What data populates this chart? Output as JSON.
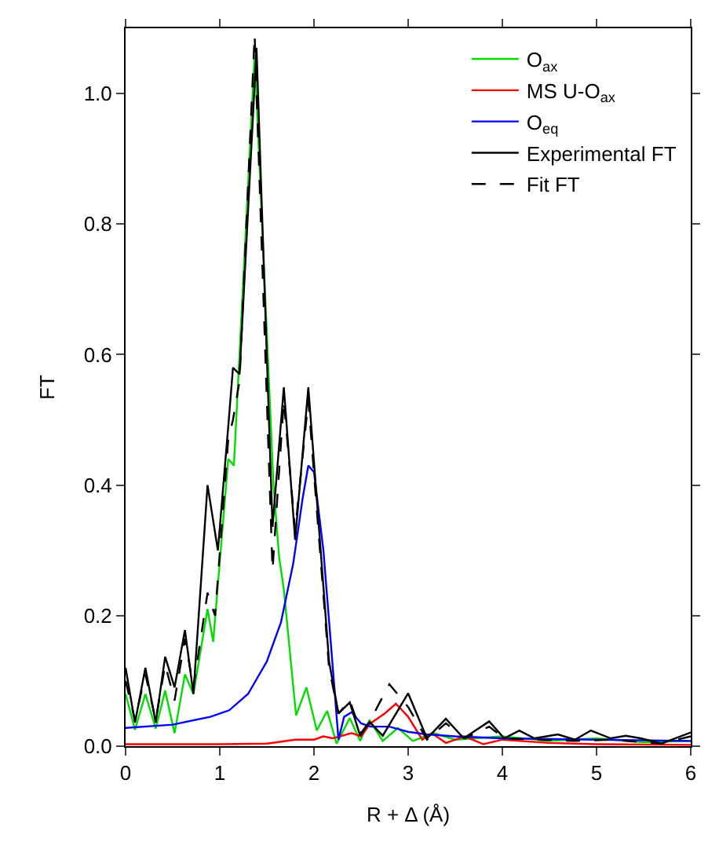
{
  "chart_data": {
    "type": "line",
    "xlabel": "R + Δ (Å)",
    "ylabel": "FT",
    "xlim": [
      0,
      6
    ],
    "xticks": [
      0,
      1,
      2,
      3,
      4,
      5,
      6
    ],
    "ylim": [
      0,
      1.1
    ],
    "yticks": [
      {
        "value": 0,
        "label": "0.0"
      },
      {
        "value": 0.2,
        "label": "0.2"
      },
      {
        "value": 0.4,
        "label": "0.4"
      },
      {
        "value": 0.6,
        "label": "0.6"
      },
      {
        "value": 0.8,
        "label": "0.8"
      },
      {
        "value": 1.0,
        "label": "1.0"
      }
    ],
    "legend": "top right",
    "marker": "none",
    "series": [
      {
        "name": "O$_{ax}$",
        "color": "#00dd00",
        "line_style": "solid",
        "x": [
          0,
          0.1,
          0.21,
          0.32,
          0.42,
          0.52,
          0.63,
          0.72,
          0.87,
          0.93,
          1.09,
          1.15,
          1.37,
          1.57,
          1.63,
          1.68,
          1.81,
          1.92,
          2.03,
          2.14,
          2.24,
          2.38,
          2.49,
          2.59,
          2.73,
          2.89,
          3.05,
          3.27,
          3.5,
          4,
          4.5,
          5,
          5.5,
          6
        ],
        "values": [
          0.08,
          0.025,
          0.08,
          0.027,
          0.085,
          0.02,
          0.11,
          0.08,
          0.21,
          0.16,
          0.44,
          0.43,
          1.06,
          0.4,
          0.29,
          0.24,
          0.047,
          0.09,
          0.024,
          0.054,
          0.004,
          0.043,
          0.008,
          0.04,
          0.008,
          0.028,
          0.008,
          0.02,
          0.01,
          0.015,
          0.008,
          0.012,
          0.006,
          0.008
        ]
      },
      {
        "name": "MS U-O$_{ax}$",
        "color": "#ff0000",
        "line_style": "solid",
        "x": [
          0,
          0.5,
          1,
          1.5,
          1.8,
          2.0,
          2.1,
          2.2,
          2.4,
          2.5,
          2.6,
          2.75,
          2.87,
          3.0,
          3.15,
          3.25,
          3.4,
          3.6,
          3.8,
          4.0,
          4.5,
          5,
          6
        ],
        "values": [
          0.003,
          0.003,
          0.003,
          0.004,
          0.01,
          0.01,
          0.015,
          0.012,
          0.02,
          0.015,
          0.035,
          0.05,
          0.065,
          0.045,
          0.01,
          0.02,
          0.005,
          0.015,
          0.003,
          0.01,
          0.005,
          0.003,
          0.002
        ]
      },
      {
        "name": "O$_{eq}$",
        "color": "#0000ff",
        "line_style": "solid",
        "x": [
          0,
          0.5,
          0.9,
          1.1,
          1.3,
          1.5,
          1.65,
          1.78,
          1.88,
          1.94,
          2.0,
          2.1,
          2.2,
          2.26,
          2.32,
          2.4,
          2.5,
          2.6,
          2.8,
          3.0,
          3.2,
          3.5,
          4,
          5,
          6
        ],
        "values": [
          0.028,
          0.033,
          0.045,
          0.055,
          0.08,
          0.13,
          0.19,
          0.28,
          0.38,
          0.43,
          0.42,
          0.3,
          0.12,
          0.01,
          0.045,
          0.052,
          0.035,
          0.03,
          0.03,
          0.022,
          0.018,
          0.015,
          0.012,
          0.01,
          0.008
        ]
      },
      {
        "name": "Experimental FT",
        "color": "#000000",
        "line_style": "solid",
        "x": [
          0,
          0.1,
          0.21,
          0.32,
          0.42,
          0.52,
          0.63,
          0.72,
          0.87,
          0.98,
          1.09,
          1.14,
          1.21,
          1.39,
          1.56,
          1.68,
          1.8,
          1.94,
          2.16,
          2.26,
          2.38,
          2.49,
          2.59,
          2.73,
          3.0,
          3.2,
          3.4,
          3.59,
          3.86,
          4.02,
          4.18,
          4.34,
          4.59,
          4.77,
          4.94,
          5.15,
          5.31,
          5.47,
          5.69,
          6
        ],
        "values": [
          0.12,
          0.036,
          0.12,
          0.036,
          0.137,
          0.09,
          0.178,
          0.08,
          0.4,
          0.3,
          0.49,
          0.58,
          0.57,
          1.07,
          0.336,
          0.55,
          0.316,
          0.55,
          0.13,
          0.05,
          0.067,
          0.016,
          0.037,
          0.016,
          0.081,
          0.012,
          0.042,
          0.012,
          0.038,
          0.012,
          0.024,
          0.012,
          0.018,
          0.01,
          0.024,
          0.012,
          0.016,
          0.012,
          0.004,
          0.021
        ]
      },
      {
        "name": "Fit FT",
        "color": "#000000",
        "line_style": "dashed",
        "x": [
          0,
          0.1,
          0.21,
          0.32,
          0.42,
          0.52,
          0.63,
          0.72,
          0.87,
          0.95,
          1.09,
          1.14,
          1.21,
          1.37,
          1.56,
          1.68,
          1.8,
          1.94,
          2.16,
          2.26,
          2.38,
          2.5,
          2.6,
          2.8,
          3.0,
          3.2,
          3.4,
          3.6,
          3.86,
          4.02,
          4.34,
          4.77,
          5.15,
          5.69,
          6
        ],
        "values": [
          0.1,
          0.04,
          0.11,
          0.04,
          0.125,
          0.07,
          0.165,
          0.09,
          0.235,
          0.2,
          0.47,
          0.5,
          0.56,
          1.09,
          0.27,
          0.53,
          0.33,
          0.53,
          0.12,
          0.05,
          0.07,
          0.02,
          0.04,
          0.095,
          0.06,
          0.01,
          0.035,
          0.012,
          0.03,
          0.012,
          0.01,
          0.008,
          0.01,
          0.004,
          0.015
        ]
      }
    ]
  }
}
